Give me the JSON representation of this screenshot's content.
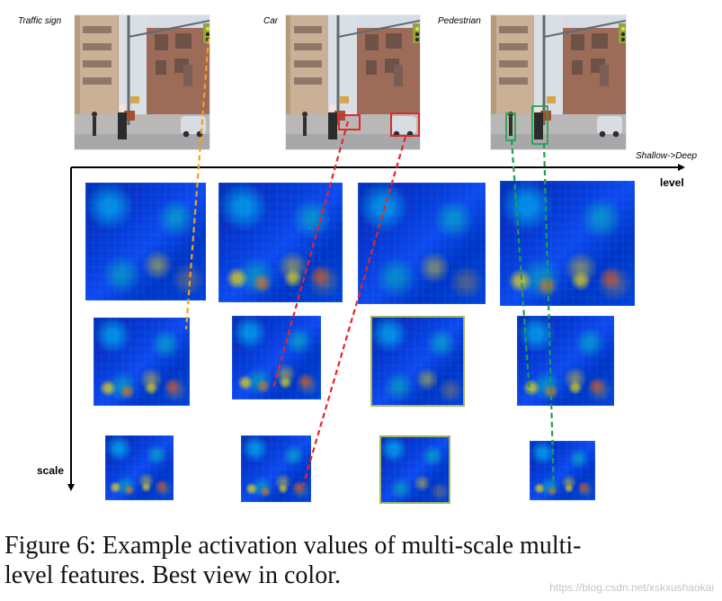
{
  "labels": {
    "traffic_sign": "Traffic sign",
    "car": "Car",
    "pedestrian": "Pedestrian",
    "shallow_deep": "Shallow->Deep",
    "level": "level",
    "scale": "scale"
  },
  "caption": {
    "line1": "Figure 6: Example activation values of multi-scale multi-",
    "line2": "level features. Best view in color."
  },
  "watermark": "https://blog.csdn.net/xskxushaokai"
}
